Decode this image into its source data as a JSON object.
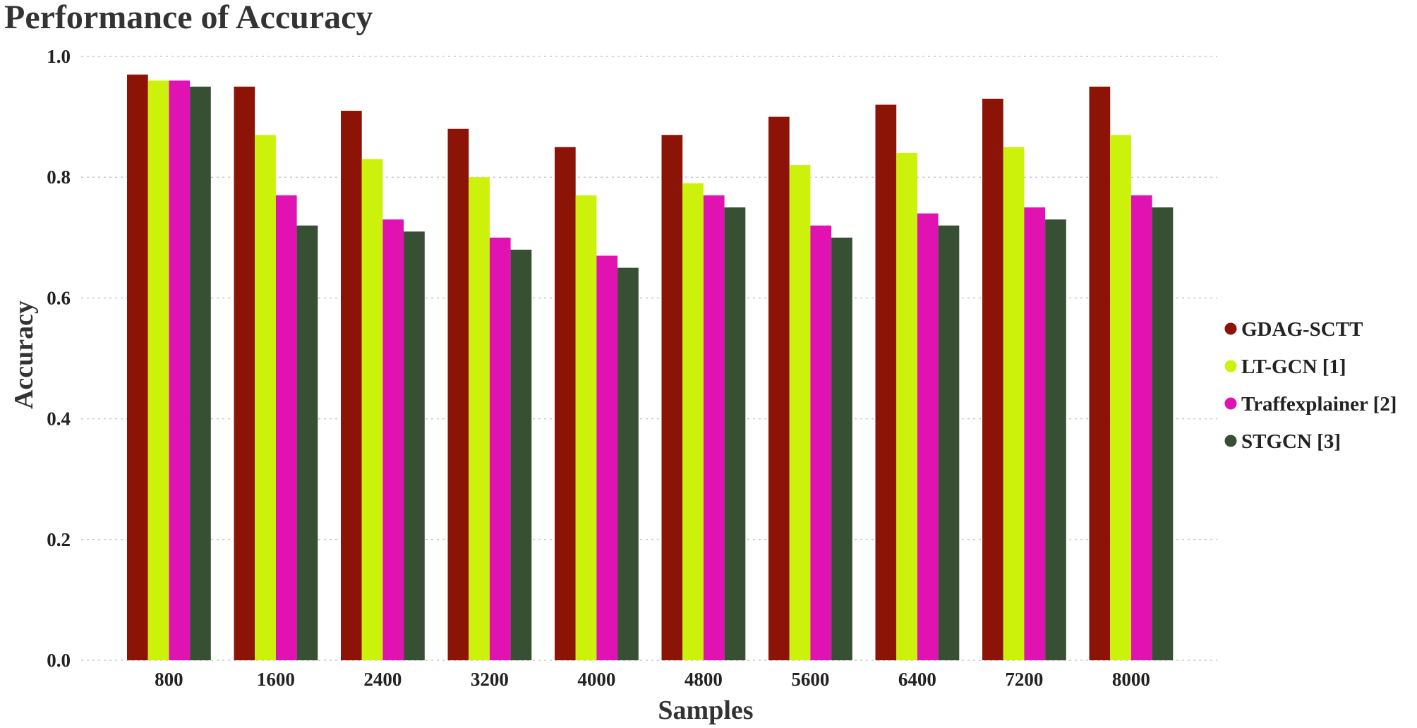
{
  "chart_data": {
    "type": "bar",
    "title": "Performance of Accuracy",
    "xlabel": "Samples",
    "ylabel": "Accuracy",
    "ylim": [
      0,
      1
    ],
    "yticks": [
      "0.0",
      "0.2",
      "0.4",
      "0.6",
      "0.8",
      "1.0"
    ],
    "categories": [
      "800",
      "1600",
      "2400",
      "3200",
      "4000",
      "4800",
      "5600",
      "6400",
      "7200",
      "8000"
    ],
    "grid": "horizontal-dotted",
    "legend_position": "right",
    "series": [
      {
        "name": "GDAG-SCTT",
        "color": "#8b1406",
        "values": [
          0.97,
          0.95,
          0.91,
          0.88,
          0.85,
          0.87,
          0.9,
          0.92,
          0.93,
          0.95
        ]
      },
      {
        "name": "LT-GCN [1]",
        "color": "#ccf20c",
        "values": [
          0.96,
          0.87,
          0.83,
          0.8,
          0.77,
          0.79,
          0.82,
          0.84,
          0.85,
          0.87
        ]
      },
      {
        "name": "Traffexplainer [2]",
        "color": "#e012b2",
        "values": [
          0.96,
          0.77,
          0.73,
          0.7,
          0.67,
          0.77,
          0.72,
          0.74,
          0.75,
          0.77
        ]
      },
      {
        "name": "STGCN [3]",
        "color": "#375033",
        "values": [
          0.95,
          0.72,
          0.71,
          0.68,
          0.65,
          0.75,
          0.7,
          0.72,
          0.73,
          0.75
        ]
      }
    ]
  }
}
